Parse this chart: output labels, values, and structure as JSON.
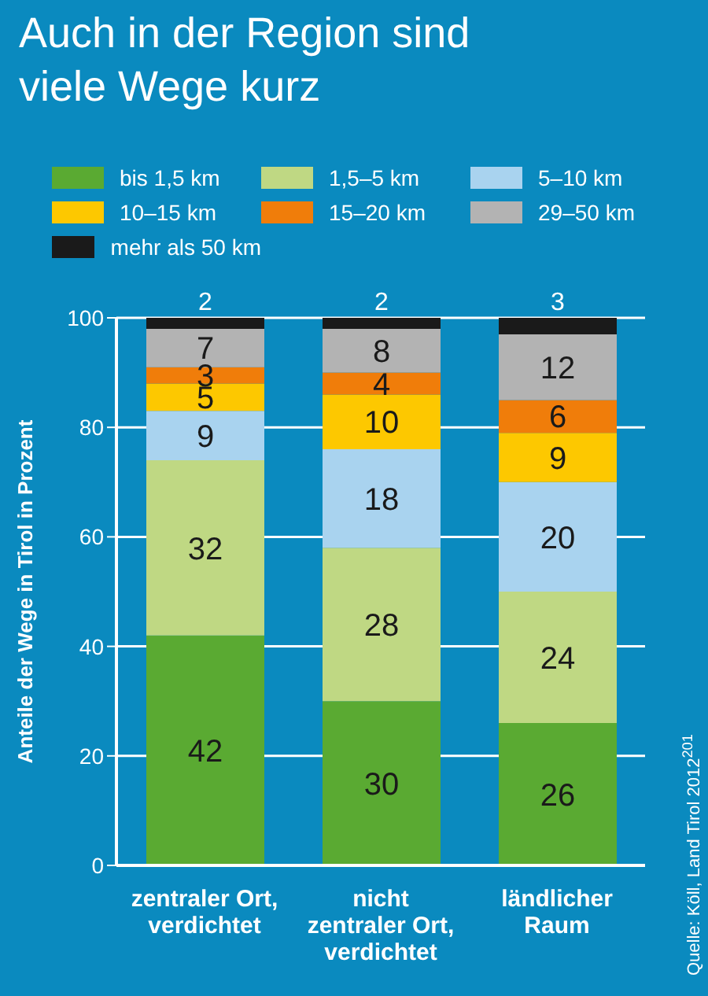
{
  "chart_data": {
    "type": "bar",
    "title": "Auch in der Region sind viele Wege kurz",
    "ylabel": "Anteile der Wege in Tirol in Prozent",
    "categories": [
      "zentraler Ort,\nverdichtet",
      "nicht\nzentraler Ort,\nverdichtet",
      "ländlicher\nRaum"
    ],
    "stacked": true,
    "data_labels": true,
    "grid": "y",
    "legend": "top",
    "ylim": [
      0,
      100
    ],
    "yticks": [
      0,
      20,
      40,
      60,
      80,
      100
    ],
    "series": [
      {
        "name": "bis 1,5 km",
        "color": "#5aaa32",
        "values": [
          42,
          30,
          26
        ]
      },
      {
        "name": "1,5–5 km",
        "color": "#bfd883",
        "values": [
          32,
          28,
          24
        ]
      },
      {
        "name": "5–10 km",
        "color": "#a9d3ef",
        "values": [
          9,
          18,
          20
        ]
      },
      {
        "name": "10–15 km",
        "color": "#fdc800",
        "values": [
          5,
          10,
          9
        ]
      },
      {
        "name": "15–20 km",
        "color": "#f07d0a",
        "values": [
          3,
          4,
          6
        ]
      },
      {
        "name": "29–50 km",
        "color": "#b3b3b3",
        "values": [
          7,
          8,
          12
        ]
      },
      {
        "name": "mehr als 50 km",
        "color": "#1a1a1a",
        "values": [
          2,
          2,
          3
        ]
      }
    ],
    "annotations": [
      "Quelle: Köll, Land Tirol 2012$^{201}$"
    ]
  }
}
